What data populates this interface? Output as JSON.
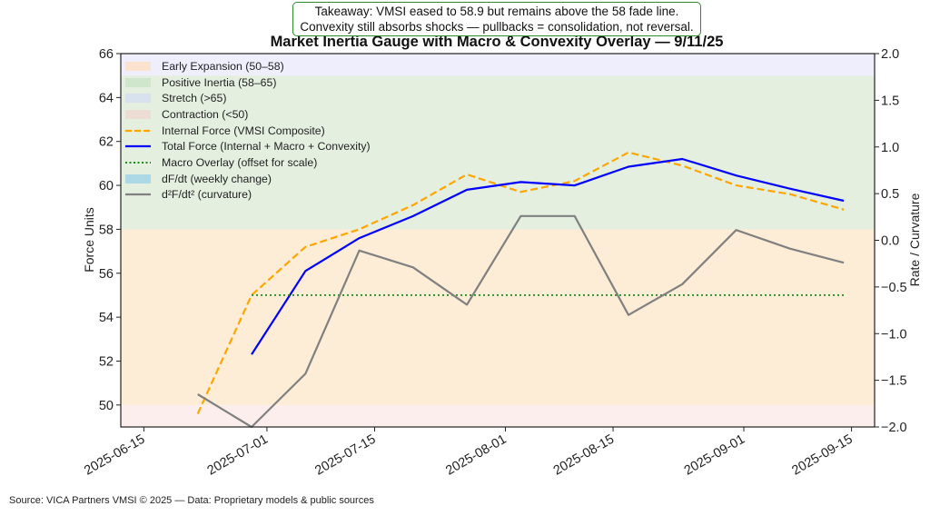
{
  "title": "Market Inertia Gauge with Macro & Convexity Overlay — 9/11/25",
  "takeaway": {
    "line1": "Takeaway: VMSI eased to 58.9 but remains above the 58 fade line.",
    "line2": "Convexity still absorbs shocks — pullbacks = consolidation, not reversal."
  },
  "source": "Source: VICA Partners VMSI © 2025 — Data: Proprietary models & public sources",
  "chart_data": {
    "type": "line",
    "title": "Market Inertia Gauge with Macro & Convexity Overlay — 9/11/25",
    "ylabel_left": "Force Units",
    "ylabel_right": "Rate / Curvature",
    "x_range": [
      "2025-06-12",
      "2025-09-18"
    ],
    "x_ticks": [
      "2025-06-15",
      "2025-07-01",
      "2025-07-15",
      "2025-08-01",
      "2025-08-15",
      "2025-09-01",
      "2025-09-15"
    ],
    "y_left_range": [
      49,
      66
    ],
    "y_left_ticks": [
      50,
      52,
      54,
      56,
      58,
      60,
      62,
      64,
      66
    ],
    "y_right_range": [
      -2.0,
      2.0
    ],
    "y_right_ticks": [
      "2.0",
      "1.5",
      "1.0",
      "0.5",
      "0.0",
      "−0.5",
      "−1.0",
      "−1.5",
      "−2.0"
    ],
    "y_right_values": [
      2.0,
      1.5,
      1.0,
      0.5,
      0.0,
      -0.5,
      -1.0,
      -1.5,
      -2.0
    ],
    "zones": [
      {
        "label": "Contraction (<50)",
        "from": 49,
        "to": 50,
        "color": "#fdeeee"
      },
      {
        "label": "Early Expansion (50–58)",
        "from": 50,
        "to": 58,
        "color": "#fdecd6"
      },
      {
        "label": "Positive Inertia (58–65)",
        "from": 58,
        "to": 65,
        "color": "#e4efe0"
      },
      {
        "label": "Stretch (>65)",
        "from": 65,
        "to": 66,
        "color": "#eeeefc"
      }
    ],
    "series": [
      {
        "name": "Internal Force (VMSI Composite)",
        "axis": "left",
        "style": "dashed",
        "color": "#ffa500",
        "points": [
          [
            "2025-06-22",
            49.6
          ],
          [
            "2025-06-29",
            55.0
          ],
          [
            "2025-07-06",
            57.2
          ],
          [
            "2025-07-13",
            58.0
          ],
          [
            "2025-07-20",
            59.1
          ],
          [
            "2025-07-27",
            60.5
          ],
          [
            "2025-08-03",
            59.7
          ],
          [
            "2025-08-10",
            60.2
          ],
          [
            "2025-08-17",
            61.5
          ],
          [
            "2025-08-24",
            60.9
          ],
          [
            "2025-08-31",
            60.0
          ],
          [
            "2025-09-07",
            59.6
          ],
          [
            "2025-09-14",
            58.9
          ]
        ]
      },
      {
        "name": "Total Force (Internal + Macro + Convexity)",
        "axis": "left",
        "style": "solid",
        "color": "#0000ff",
        "points": [
          [
            "2025-06-29",
            52.3
          ],
          [
            "2025-07-06",
            56.1
          ],
          [
            "2025-07-13",
            57.6
          ],
          [
            "2025-07-20",
            58.6
          ],
          [
            "2025-07-27",
            59.8
          ],
          [
            "2025-08-03",
            60.15
          ],
          [
            "2025-08-10",
            60.0
          ],
          [
            "2025-08-17",
            60.85
          ],
          [
            "2025-08-24",
            61.2
          ],
          [
            "2025-08-31",
            60.45
          ],
          [
            "2025-09-07",
            59.85
          ],
          [
            "2025-09-14",
            59.3
          ]
        ]
      },
      {
        "name": "Macro Overlay (offset for scale)",
        "axis": "left",
        "style": "dotted",
        "color": "#1a8a1a",
        "points": [
          [
            "2025-06-29",
            55.0
          ],
          [
            "2025-09-14",
            55.0
          ]
        ]
      },
      {
        "name": "dF/dt (weekly change)",
        "axis": "right",
        "style": "bar",
        "color": "#add8e6",
        "points": []
      },
      {
        "name": "d²F/dt² (curvature)",
        "axis": "right",
        "style": "solid",
        "color": "#808080",
        "points": [
          [
            "2025-06-22",
            -1.65
          ],
          [
            "2025-06-29",
            -2.0
          ],
          [
            "2025-07-06",
            -1.43
          ],
          [
            "2025-07-13",
            -0.11
          ],
          [
            "2025-07-20",
            -0.29
          ],
          [
            "2025-07-27",
            -0.69
          ],
          [
            "2025-08-03",
            0.26
          ],
          [
            "2025-08-10",
            0.26
          ],
          [
            "2025-08-17",
            -0.8
          ],
          [
            "2025-08-24",
            -0.47
          ],
          [
            "2025-08-31",
            0.11
          ],
          [
            "2025-09-07",
            -0.09
          ],
          [
            "2025-09-14",
            -0.24
          ]
        ]
      }
    ],
    "legend_position": "upper-left",
    "grid": false
  }
}
